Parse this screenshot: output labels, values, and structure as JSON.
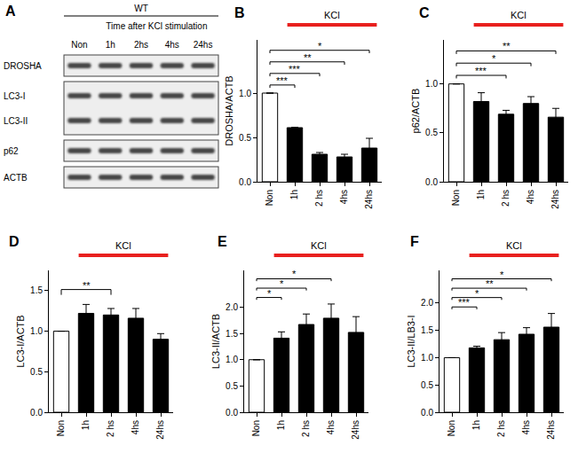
{
  "blot": {
    "panel": "A",
    "group": "WT",
    "header": "Time after KCl stimulation",
    "lanes": [
      "Non",
      "1h",
      "2hs",
      "4hs",
      "24hs"
    ],
    "rows": [
      "DROSHA",
      "LC3-I",
      "LC3-II",
      "p62",
      "ACTB"
    ]
  },
  "chart_data": [
    {
      "panel": "B",
      "type": "bar",
      "ylabel": "DROSHA/ACTB",
      "categories": [
        "Non",
        "1h",
        "2 hs",
        "4hs",
        "24hs"
      ],
      "values": [
        1.0,
        0.61,
        0.31,
        0.28,
        0.38
      ],
      "errors": [
        0,
        0.005,
        0.02,
        0.03,
        0.11
      ],
      "colors": [
        "#ffffff",
        "#000000",
        "#000000",
        "#000000",
        "#000000"
      ],
      "ylim": [
        0,
        1.6
      ],
      "yticks": [
        {
          "value": 0,
          "label": "0.0"
        },
        {
          "value": 0.5,
          "label": "0.5"
        },
        {
          "value": 1,
          "label": "1.0"
        }
      ],
      "grid": false,
      "significance": [
        {
          "from": "Non",
          "to": "1h",
          "label": "***"
        },
        {
          "from": "Non",
          "to": "2 hs",
          "label": "***"
        },
        {
          "from": "Non",
          "to": "4hs",
          "label": "**"
        },
        {
          "from": "Non",
          "to": "24hs",
          "label": "*"
        }
      ],
      "annotations": [
        {
          "text": "KCl",
          "from": "1h",
          "to": "24hs",
          "color": "#e8201e"
        }
      ]
    },
    {
      "panel": "C",
      "type": "bar",
      "ylabel": "p62/ACTB",
      "categories": [
        "Non",
        "1h",
        "2 hs",
        "4hs",
        "24hs"
      ],
      "values": [
        1.0,
        0.82,
        0.69,
        0.8,
        0.66
      ],
      "errors": [
        0,
        0.09,
        0.04,
        0.07,
        0.09
      ],
      "colors": [
        "#ffffff",
        "#000000",
        "#000000",
        "#000000",
        "#000000"
      ],
      "ylim": [
        0,
        1.45
      ],
      "yticks": [
        {
          "value": 0,
          "label": "0.0"
        },
        {
          "value": 0.5,
          "label": "0.5"
        },
        {
          "value": 1,
          "label": "1.0"
        }
      ],
      "grid": false,
      "significance": [
        {
          "from": "Non",
          "to": "2 hs",
          "label": "***"
        },
        {
          "from": "Non",
          "to": "4hs",
          "label": "*"
        },
        {
          "from": "Non",
          "to": "24hs",
          "label": "**"
        }
      ],
      "annotations": [
        {
          "text": "KCl",
          "from": "1h",
          "to": "24hs",
          "color": "#e8201e"
        }
      ]
    },
    {
      "panel": "D",
      "type": "bar",
      "ylabel": "LC3-I/ACTB",
      "categories": [
        "Non",
        "1h",
        "2 hs",
        "4hs",
        "24hs"
      ],
      "values": [
        1.0,
        1.22,
        1.2,
        1.16,
        0.9
      ],
      "errors": [
        0,
        0.11,
        0.08,
        0.12,
        0.07
      ],
      "colors": [
        "#ffffff",
        "#000000",
        "#000000",
        "#000000",
        "#000000"
      ],
      "ylim": [
        0,
        1.75
      ],
      "yticks": [
        {
          "value": 0,
          "label": "0.0"
        },
        {
          "value": 0.5,
          "label": "0.5"
        },
        {
          "value": 1,
          "label": "1.0"
        },
        {
          "value": 1.5,
          "label": "1.5"
        }
      ],
      "grid": false,
      "significance": [
        {
          "from": "Non",
          "to": "2 hs",
          "label": "**"
        }
      ],
      "annotations": [
        {
          "text": "KCl",
          "from": "1h",
          "to": "24hs",
          "color": "#e8201e"
        }
      ]
    },
    {
      "panel": "E",
      "type": "bar",
      "ylabel": "LC3-II/ACTB",
      "categories": [
        "Non",
        "1h",
        "2 hs",
        "4hs",
        "24hs"
      ],
      "values": [
        1.0,
        1.41,
        1.67,
        1.79,
        1.52
      ],
      "errors": [
        0,
        0.12,
        0.2,
        0.27,
        0.3
      ],
      "colors": [
        "#ffffff",
        "#000000",
        "#000000",
        "#000000",
        "#000000"
      ],
      "ylim": [
        0,
        2.7
      ],
      "yticks": [
        {
          "value": 0,
          "label": "0.0"
        },
        {
          "value": 0.5,
          "label": "0.5"
        },
        {
          "value": 1,
          "label": "1.0"
        },
        {
          "value": 1.5,
          "label": "1.5"
        },
        {
          "value": 2,
          "label": "2.0"
        }
      ],
      "grid": false,
      "significance": [
        {
          "from": "Non",
          "to": "1h",
          "label": "*"
        },
        {
          "from": "Non",
          "to": "2 hs",
          "label": "*"
        },
        {
          "from": "Non",
          "to": "4hs",
          "label": "*"
        }
      ],
      "annotations": [
        {
          "text": "KCl",
          "from": "1h",
          "to": "24hs",
          "color": "#e8201e"
        }
      ]
    },
    {
      "panel": "F",
      "type": "bar",
      "ylabel": "LC3-II/LB3-I",
      "categories": [
        "Non",
        "1h",
        "2 hs",
        "4hs",
        "24hs"
      ],
      "values": [
        1.0,
        1.18,
        1.33,
        1.43,
        1.56
      ],
      "errors": [
        0,
        0.03,
        0.13,
        0.12,
        0.25
      ],
      "colors": [
        "#ffffff",
        "#000000",
        "#000000",
        "#000000",
        "#000000"
      ],
      "ylim": [
        0,
        2.6
      ],
      "yticks": [
        {
          "value": 0,
          "label": "0.0"
        },
        {
          "value": 0.5,
          "label": "0.5"
        },
        {
          "value": 1,
          "label": "1.0"
        },
        {
          "value": 1.5,
          "label": "1.5"
        },
        {
          "value": 2,
          "label": "2.0"
        }
      ],
      "grid": false,
      "significance": [
        {
          "from": "Non",
          "to": "1h",
          "label": "***"
        },
        {
          "from": "Non",
          "to": "2 hs",
          "label": "*"
        },
        {
          "from": "Non",
          "to": "4hs",
          "label": "**"
        },
        {
          "from": "Non",
          "to": "24hs",
          "label": "*"
        }
      ],
      "annotations": [
        {
          "text": "KCl",
          "from": "1h",
          "to": "24hs",
          "color": "#e8201e"
        }
      ]
    }
  ]
}
